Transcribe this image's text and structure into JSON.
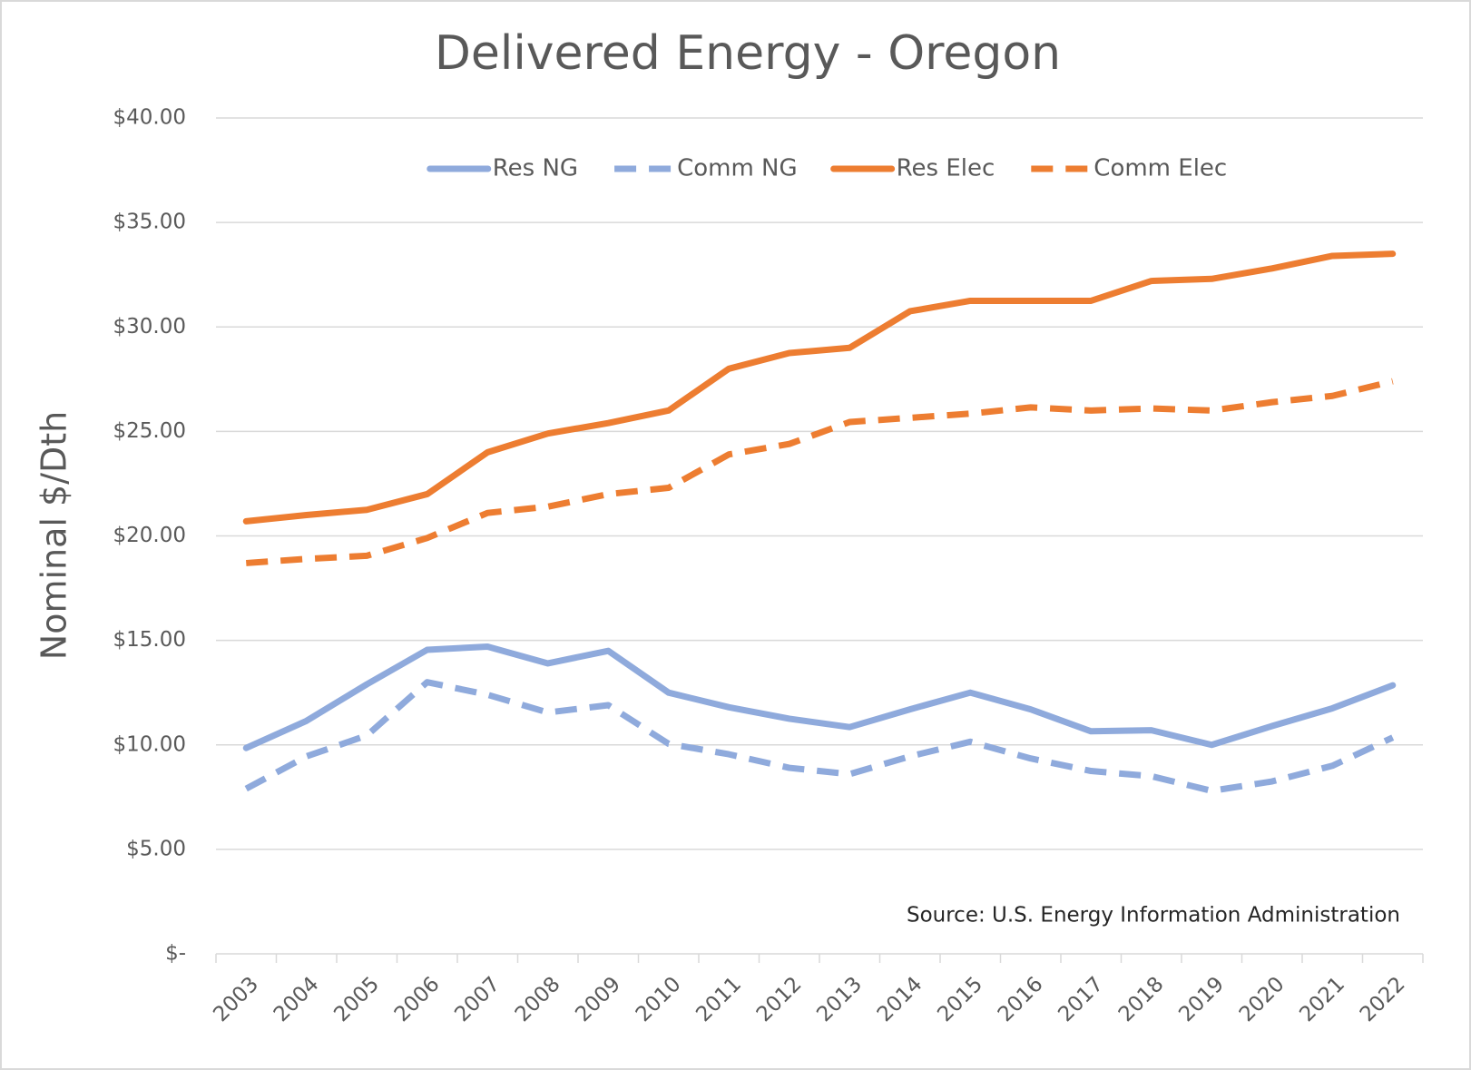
{
  "chart_data": {
    "type": "line",
    "title": "Delivered Energy - Oregon",
    "y_label": "Nominal $/Dth",
    "annotation": "Source: U.S. Energy Information Administration",
    "categories": [
      "2003",
      "2004",
      "2005",
      "2006",
      "2007",
      "2008",
      "2009",
      "2010",
      "2011",
      "2012",
      "2013",
      "2014",
      "2015",
      "2016",
      "2017",
      "2018",
      "2019",
      "2020",
      "2021",
      "2022"
    ],
    "series": [
      {
        "name": "Res NG",
        "color": "#8faadc",
        "line_style": "solid",
        "values": [
          9.85,
          11.15,
          12.9,
          14.55,
          14.7,
          13.9,
          14.5,
          12.5,
          11.8,
          11.25,
          10.85,
          11.7,
          12.5,
          11.7,
          10.65,
          10.7,
          10.0,
          10.9,
          11.75,
          12.85
        ]
      },
      {
        "name": "Comm NG",
        "color": "#8faadc",
        "line_style": "dashed",
        "values": [
          7.9,
          9.45,
          10.45,
          13.0,
          12.4,
          11.55,
          11.9,
          10.05,
          9.55,
          8.9,
          8.6,
          9.45,
          10.15,
          9.35,
          8.75,
          8.5,
          7.8,
          8.25,
          9.0,
          10.35
        ]
      },
      {
        "name": "Res Elec",
        "color": "#ed7d31",
        "line_style": "solid",
        "values": [
          20.7,
          21.0,
          21.25,
          22.0,
          24.0,
          24.9,
          25.4,
          26.0,
          28.0,
          28.75,
          29.0,
          30.75,
          31.25,
          31.25,
          31.25,
          32.2,
          32.3,
          32.8,
          33.4,
          33.5
        ]
      },
      {
        "name": "Comm Elec",
        "color": "#ed7d31",
        "line_style": "dashed",
        "values": [
          18.7,
          18.9,
          19.05,
          19.9,
          21.1,
          21.4,
          22.0,
          22.3,
          23.9,
          24.4,
          25.45,
          25.65,
          25.85,
          26.15,
          26.0,
          26.1,
          26.0,
          26.4,
          26.7,
          27.4
        ]
      }
    ],
    "ylim": [
      0,
      40
    ],
    "yticks": [
      {
        "value": 0,
        "label": "$-"
      },
      {
        "value": 5,
        "label": "$5.00"
      },
      {
        "value": 10,
        "label": "$10.00"
      },
      {
        "value": 15,
        "label": "$15.00"
      },
      {
        "value": 20,
        "label": "$20.00"
      },
      {
        "value": 25,
        "label": "$25.00"
      },
      {
        "value": 30,
        "label": "$30.00"
      },
      {
        "value": 35,
        "label": "$35.00"
      },
      {
        "value": 40,
        "label": "$40.00"
      }
    ],
    "grid": true,
    "legend": "top"
  }
}
